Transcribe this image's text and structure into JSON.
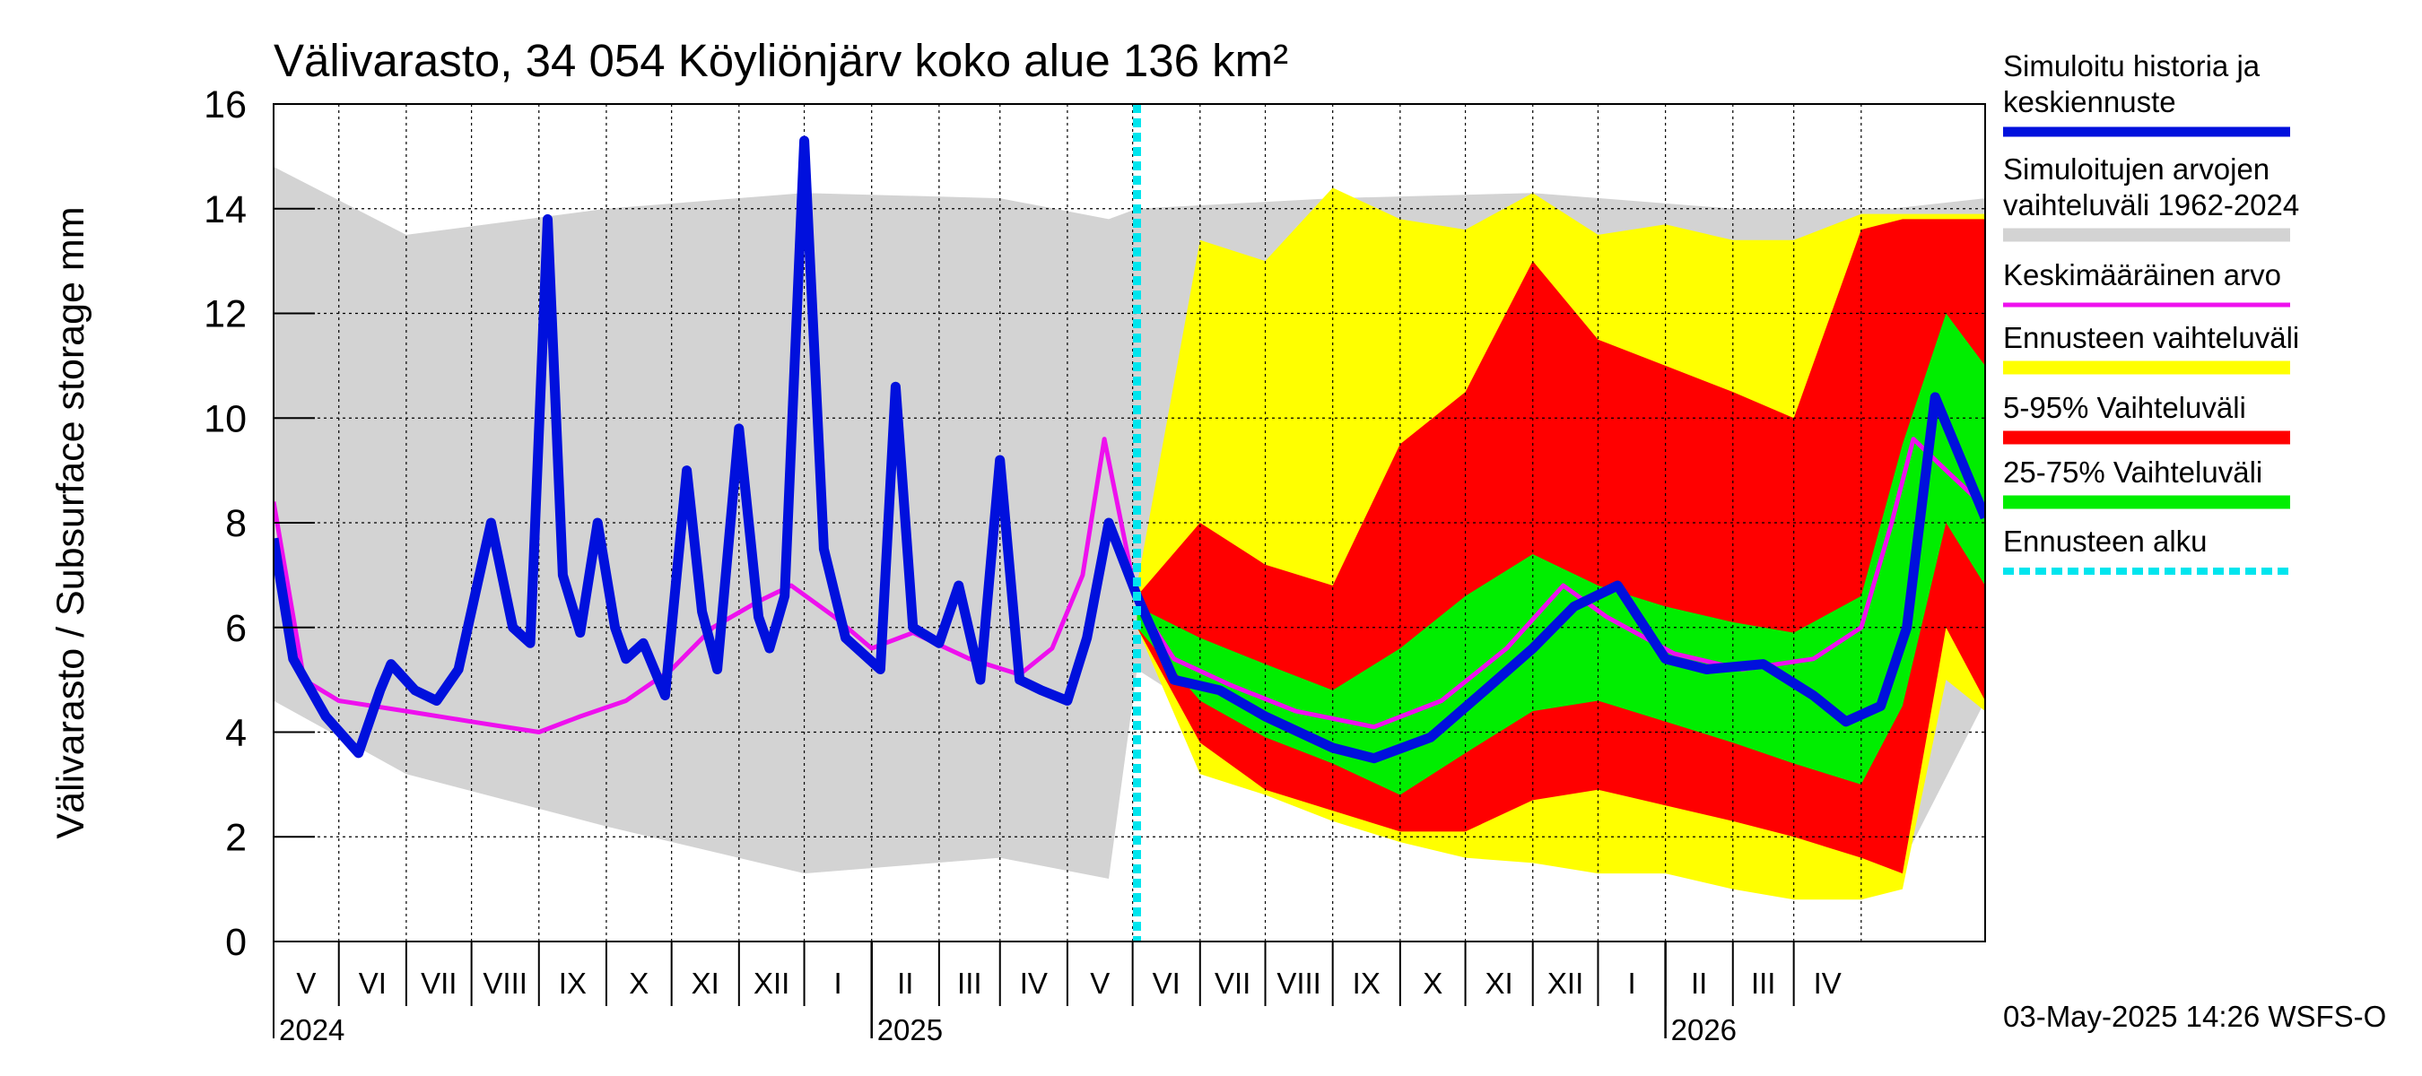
{
  "chart_data": {
    "type": "area",
    "title": "Välivarasto, 34 054 Köyliönjärv koko alue 136 km²",
    "ylabel": "Välivarasto / Subsurface storage  mm",
    "ylim": [
      0,
      16
    ],
    "y_ticks": [
      "0",
      "2",
      "4",
      "6",
      "8",
      "10",
      "12",
      "14",
      "16"
    ],
    "x_range": [
      "2024-04-01",
      "2026-05-28"
    ],
    "grid": true,
    "months": [
      "V",
      "VI",
      "VII",
      "VIII",
      "IX",
      "X",
      "XI",
      "XII",
      "I",
      "II",
      "III",
      "IV",
      "V",
      "VI",
      "VII",
      "VIII",
      "IX",
      "X",
      "XI",
      "XII",
      "I",
      "II",
      "III",
      "IV"
    ],
    "years": [
      "2024",
      "2025",
      "2026"
    ],
    "forecast_start": "2025-05-03",
    "timestamp": "03-May-2025 14:26 WSFS-O",
    "legend_position": "right",
    "legend": [
      {
        "label": "Simuloitu historia ja keskiennuste",
        "color": "#0010dd"
      },
      {
        "label": "Simuloitujen arvojen vaihteluväli 1962-2024",
        "color": "#d3d3d3"
      },
      {
        "label": "Keskimääräinen arvo",
        "color": "#ee10ee"
      },
      {
        "label": "Ennusteen vaihteluväli",
        "color": "#ffff00"
      },
      {
        "label": "5-95% Vaihteluväli",
        "color": "#ff0000"
      },
      {
        "label": "25-75% Vaihteluväli",
        "color": "#00ee00"
      },
      {
        "label": "Ennusteen alku",
        "color": "#00e5ee"
      }
    ],
    "series": [
      {
        "name": "Simuloitu historia ja keskiennuste",
        "color": "#0010dd",
        "x": [
          "2024-04-01",
          "2024-04-10",
          "2024-04-25",
          "2024-05-10",
          "2024-05-20",
          "2024-05-25",
          "2024-06-05",
          "2024-06-15",
          "2024-06-25",
          "2024-07-10",
          "2024-07-20",
          "2024-07-28",
          "2024-08-05",
          "2024-08-12",
          "2024-08-20",
          "2024-08-28",
          "2024-09-05",
          "2024-09-10",
          "2024-09-18",
          "2024-09-28",
          "2024-10-08",
          "2024-10-15",
          "2024-10-22",
          "2024-11-01",
          "2024-11-10",
          "2024-11-15",
          "2024-11-22",
          "2024-12-01",
          "2024-12-10",
          "2024-12-20",
          "2025-01-05",
          "2025-01-12",
          "2025-01-20",
          "2025-02-01",
          "2025-02-10",
          "2025-02-20",
          "2025-03-01",
          "2025-03-10",
          "2025-03-20",
          "2025-04-01",
          "2025-04-10",
          "2025-04-20",
          "2025-05-03",
          "2025-05-20",
          "2025-06-10",
          "2025-07-01",
          "2025-08-01",
          "2025-08-20",
          "2025-09-15",
          "2025-10-10",
          "2025-11-01",
          "2025-11-20",
          "2025-12-10",
          "2026-01-01",
          "2026-01-20",
          "2026-02-15",
          "2026-03-10",
          "2026-03-25",
          "2026-04-10",
          "2026-04-22",
          "2026-05-05",
          "2026-05-28"
        ],
        "y": [
          7.7,
          5.4,
          4.3,
          3.6,
          4.8,
          5.3,
          4.8,
          4.6,
          5.2,
          8.0,
          6.0,
          5.7,
          13.8,
          7.0,
          5.9,
          8.0,
          6.0,
          5.4,
          5.7,
          4.7,
          9.0,
          6.3,
          5.2,
          9.8,
          6.2,
          5.6,
          6.6,
          15.3,
          7.5,
          5.8,
          5.2,
          10.6,
          6.0,
          5.7,
          6.8,
          5.0,
          9.2,
          5.0,
          4.8,
          4.6,
          5.8,
          8.0,
          6.6,
          5.0,
          4.8,
          4.3,
          3.7,
          3.5,
          3.9,
          4.8,
          5.6,
          6.4,
          6.8,
          5.4,
          5.2,
          5.3,
          4.7,
          4.2,
          4.5,
          6.0,
          10.4,
          8.1
        ]
      },
      {
        "name": "Keskimääräinen arvo",
        "color": "#ee10ee",
        "x": [
          "2024-04-01",
          "2024-04-15",
          "2024-05-01",
          "2024-06-01",
          "2024-07-01",
          "2024-08-01",
          "2024-08-20",
          "2024-09-10",
          "2024-10-01",
          "2024-10-20",
          "2024-11-10",
          "2024-11-25",
          "2024-12-15",
          "2025-01-01",
          "2025-01-20",
          "2025-02-15",
          "2025-03-10",
          "2025-03-25",
          "2025-04-08",
          "2025-04-18",
          "2025-05-03",
          "2025-05-20",
          "2025-06-15",
          "2025-07-15",
          "2025-08-20",
          "2025-09-20",
          "2025-10-20",
          "2025-11-15",
          "2025-12-05",
          "2026-01-05",
          "2026-02-05",
          "2026-03-10",
          "2026-04-01",
          "2026-04-15",
          "2026-04-25",
          "2026-05-10",
          "2026-05-28"
        ],
        "y": [
          8.4,
          5.0,
          4.6,
          4.4,
          4.2,
          4.0,
          4.3,
          4.6,
          5.2,
          6.0,
          6.5,
          6.8,
          6.2,
          5.6,
          5.9,
          5.4,
          5.1,
          5.6,
          7.0,
          9.6,
          6.5,
          5.4,
          4.9,
          4.4,
          4.1,
          4.6,
          5.6,
          6.8,
          6.2,
          5.5,
          5.2,
          5.4,
          6.0,
          8.0,
          9.6,
          9.0,
          8.3
        ]
      },
      {
        "name": "Simuloitujen arvojen vaihteluväli 1962-2024",
        "color": "#d3d3d3",
        "x": [
          "2024-04-01",
          "2024-06-01",
          "2024-09-01",
          "2024-12-01",
          "2025-03-01",
          "2025-04-20",
          "2025-05-03",
          "2025-08-01",
          "2025-11-01",
          "2026-02-01",
          "2026-04-15",
          "2026-05-28"
        ],
        "lower": [
          4.6,
          3.2,
          2.2,
          1.3,
          1.6,
          1.2,
          5.2,
          2.8,
          1.6,
          1.2,
          1.1,
          4.6
        ],
        "upper": [
          14.8,
          13.5,
          14.0,
          14.3,
          14.2,
          13.8,
          14.0,
          14.2,
          14.3,
          14.0,
          14.0,
          14.2
        ]
      },
      {
        "name": "Ennusteen vaihteluväli",
        "color": "#ffff00",
        "x": [
          "2025-05-03",
          "2025-06-01",
          "2025-07-01",
          "2025-08-01",
          "2025-09-01",
          "2025-10-01",
          "2025-11-01",
          "2025-12-01",
          "2026-01-01",
          "2026-02-01",
          "2026-03-01",
          "2026-04-01",
          "2026-04-20",
          "2026-05-10",
          "2026-05-28"
        ],
        "lower": [
          6.0,
          3.2,
          2.8,
          2.3,
          1.9,
          1.6,
          1.5,
          1.3,
          1.3,
          1.0,
          0.8,
          0.8,
          1.0,
          5.0,
          4.4
        ],
        "upper": [
          6.8,
          13.4,
          13.0,
          14.4,
          13.8,
          13.6,
          14.3,
          13.5,
          13.7,
          13.4,
          13.4,
          13.9,
          13.9,
          13.9,
          13.9
        ]
      },
      {
        "name": "5-95% Vaihteluväli",
        "color": "#ff0000",
        "x": [
          "2025-05-03",
          "2025-06-01",
          "2025-07-01",
          "2025-08-01",
          "2025-09-01",
          "2025-10-01",
          "2025-11-01",
          "2025-12-01",
          "2026-01-01",
          "2026-02-01",
          "2026-03-01",
          "2026-04-01",
          "2026-04-20",
          "2026-05-10",
          "2026-05-28"
        ],
        "lower": [
          6.0,
          3.8,
          2.9,
          2.5,
          2.1,
          2.1,
          2.7,
          2.9,
          2.6,
          2.3,
          2.0,
          1.6,
          1.3,
          6.0,
          4.6
        ],
        "upper": [
          6.6,
          8.0,
          7.2,
          6.8,
          9.5,
          10.5,
          13.0,
          11.5,
          11.0,
          10.5,
          10.0,
          13.6,
          13.8,
          13.8,
          13.8
        ]
      },
      {
        "name": "25-75% Vaihteluväli",
        "color": "#00ee00",
        "x": [
          "2025-05-03",
          "2025-06-01",
          "2025-07-01",
          "2025-08-01",
          "2025-09-01",
          "2025-10-01",
          "2025-11-01",
          "2025-12-01",
          "2026-01-01",
          "2026-02-01",
          "2026-03-01",
          "2026-04-01",
          "2026-04-20",
          "2026-05-10",
          "2026-05-28"
        ],
        "lower": [
          6.0,
          4.6,
          3.9,
          3.4,
          2.8,
          3.6,
          4.4,
          4.6,
          4.2,
          3.8,
          3.4,
          3.0,
          4.5,
          8.0,
          6.8
        ],
        "upper": [
          6.4,
          5.8,
          5.3,
          4.8,
          5.6,
          6.6,
          7.4,
          6.8,
          6.4,
          6.1,
          5.9,
          6.6,
          9.5,
          12.0,
          11.0
        ]
      }
    ]
  }
}
